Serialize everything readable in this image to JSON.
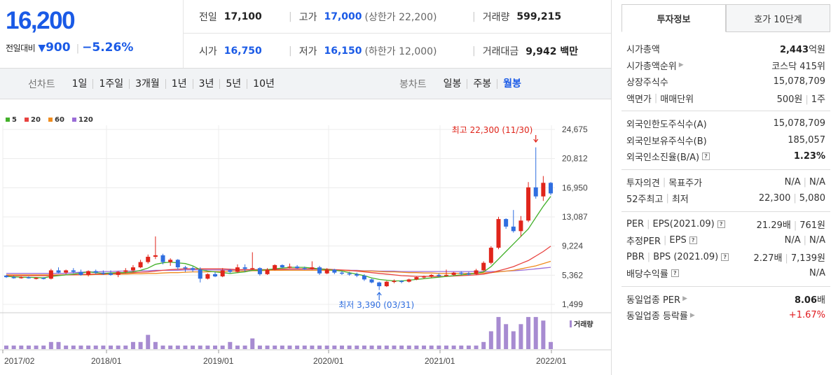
{
  "price": {
    "current": "16,200",
    "change_label": "전일대비",
    "change_value": "900",
    "change_pct": "−5.26%"
  },
  "stats": {
    "prev_close": {
      "label": "전일",
      "value": "17,100"
    },
    "high": {
      "label": "고가",
      "value": "17,000",
      "limit_label": "(상한가 22,200)"
    },
    "volume": {
      "label": "거래량",
      "value": "599,215"
    },
    "open": {
      "label": "시가",
      "value": "16,750"
    },
    "low": {
      "label": "저가",
      "value": "16,150",
      "limit_label": "(하한가 12,000)"
    },
    "amount": {
      "label": "거래대금",
      "value": "9,942 백만"
    }
  },
  "tabs": {
    "line_title": "선차트",
    "line_options": [
      "1일",
      "1주일",
      "3개월",
      "1년",
      "3년",
      "5년",
      "10년"
    ],
    "candle_title": "봉차트",
    "candle_options": [
      "일봉",
      "주봉",
      "월봉"
    ],
    "candle_active": "월봉"
  },
  "chart_data": {
    "type": "candlestick",
    "interval": "monthly",
    "x_tick_labels": [
      "2017/02",
      "2018/01",
      "2019/01",
      "2020/01",
      "2021/01",
      "2022/01"
    ],
    "y_tick_labels": [
      "24,675",
      "20,812",
      "16,950",
      "13,087",
      "9,224",
      "5,362",
      "1,499"
    ],
    "ylim": [
      1499,
      24675
    ],
    "legend": [
      {
        "name": "5",
        "color": "#43b02a"
      },
      {
        "name": "20",
        "color": "#e8423f"
      },
      {
        "name": "60",
        "color": "#f08c1e"
      },
      {
        "name": "120",
        "color": "#9b6dd7"
      }
    ],
    "max_annotation": "최고 22,300 (11/30)",
    "min_annotation": "최저 3,390 (03/31)",
    "volume_label": "거래량",
    "up_color": "#e0251b",
    "down_color": "#2f6ee0",
    "volume_color": "#a78bd1",
    "ohlc": [
      [
        5300,
        5400,
        5000,
        5100,
        1
      ],
      [
        5100,
        5300,
        4900,
        5000,
        1
      ],
      [
        5000,
        5200,
        4900,
        5100,
        1
      ],
      [
        5100,
        5200,
        4900,
        4950,
        1
      ],
      [
        4950,
        5100,
        4800,
        5000,
        1
      ],
      [
        5000,
        5100,
        4800,
        4900,
        1
      ],
      [
        4900,
        6200,
        4800,
        6000,
        2
      ],
      [
        6000,
        6400,
        5600,
        5700,
        2
      ],
      [
        5700,
        6100,
        5500,
        6000,
        1
      ],
      [
        6000,
        6300,
        5600,
        5800,
        1
      ],
      [
        5800,
        6100,
        5300,
        5400,
        1
      ],
      [
        5400,
        6000,
        5200,
        5900,
        1
      ],
      [
        5900,
        6100,
        5500,
        5700,
        1
      ],
      [
        5700,
        6000,
        5400,
        5600,
        1
      ],
      [
        5600,
        6000,
        5300,
        5400,
        1
      ],
      [
        5400,
        5900,
        5100,
        5800,
        1
      ],
      [
        5800,
        6300,
        5600,
        6000,
        1
      ],
      [
        6000,
        6700,
        5800,
        6400,
        2
      ],
      [
        6400,
        7400,
        6300,
        7100,
        2
      ],
      [
        7100,
        8100,
        6900,
        7800,
        4
      ],
      [
        7800,
        10500,
        7500,
        8000,
        2
      ],
      [
        8000,
        8200,
        6800,
        7100,
        1
      ],
      [
        7100,
        7600,
        6600,
        7400,
        1
      ],
      [
        7400,
        7500,
        6100,
        6400,
        1
      ],
      [
        6400,
        6600,
        5800,
        6300,
        1
      ],
      [
        6300,
        6500,
        5800,
        6100,
        1
      ],
      [
        6100,
        6400,
        4400,
        4900,
        1
      ],
      [
        4900,
        5600,
        4800,
        5500,
        1
      ],
      [
        5500,
        5800,
        5100,
        5200,
        1
      ],
      [
        5200,
        6300,
        5100,
        6000,
        1
      ],
      [
        6000,
        6200,
        5600,
        5800,
        2
      ],
      [
        5800,
        6800,
        5700,
        6400,
        1
      ],
      [
        6400,
        6800,
        5800,
        6200,
        1
      ],
      [
        6200,
        8400,
        6100,
        6300,
        3
      ],
      [
        6300,
        6400,
        5300,
        5500,
        1
      ],
      [
        5500,
        6300,
        5400,
        6100,
        1
      ],
      [
        6100,
        6800,
        6000,
        6700,
        1
      ],
      [
        6700,
        6800,
        6300,
        6400,
        1
      ],
      [
        6400,
        6900,
        6300,
        6500,
        1
      ],
      [
        6500,
        6700,
        6200,
        6300,
        1
      ],
      [
        6300,
        6500,
        6100,
        6200,
        1
      ],
      [
        6200,
        7200,
        6100,
        6400,
        1
      ],
      [
        6400,
        6600,
        5400,
        5600,
        1
      ],
      [
        5600,
        6300,
        5500,
        6100,
        1
      ],
      [
        6100,
        6200,
        5500,
        5700,
        1
      ],
      [
        5700,
        5900,
        5400,
        5600,
        1
      ],
      [
        5600,
        5800,
        5300,
        5500,
        1
      ],
      [
        5500,
        5700,
        5100,
        5300,
        1
      ],
      [
        5300,
        5500,
        4600,
        4800,
        1
      ],
      [
        4800,
        4900,
        4300,
        4400,
        1
      ],
      [
        4400,
        4500,
        3390,
        3900,
        1
      ],
      [
        3900,
        4600,
        3800,
        4500,
        1
      ],
      [
        4500,
        4800,
        4300,
        4600,
        1
      ],
      [
        4600,
        4700,
        4300,
        4500,
        1
      ],
      [
        4500,
        4900,
        4400,
        4800,
        1
      ],
      [
        4800,
        5200,
        4700,
        5100,
        1
      ],
      [
        5100,
        5300,
        4900,
        5200,
        1
      ],
      [
        5200,
        5500,
        5000,
        5400,
        1
      ],
      [
        5400,
        5600,
        5100,
        5300,
        1
      ],
      [
        5300,
        6100,
        5200,
        5400,
        1
      ],
      [
        5400,
        5800,
        5300,
        5700,
        1
      ],
      [
        5700,
        5900,
        5400,
        5600,
        1
      ],
      [
        5600,
        5800,
        5300,
        5500,
        1
      ],
      [
        5500,
        6200,
        5400,
        6000,
        1
      ],
      [
        6000,
        7200,
        5900,
        7000,
        2
      ],
      [
        7000,
        9200,
        6800,
        9000,
        5
      ],
      [
        9000,
        13100,
        8800,
        12800,
        9
      ],
      [
        12800,
        12900,
        11500,
        11800,
        7
      ],
      [
        11800,
        14000,
        11000,
        11200,
        5
      ],
      [
        11200,
        13200,
        10500,
        12600,
        7
      ],
      [
        12600,
        17700,
        12400,
        17000,
        9
      ],
      [
        17000,
        22300,
        15500,
        15800,
        9
      ],
      [
        15800,
        18500,
        15200,
        17600,
        8
      ],
      [
        17600,
        17700,
        16000,
        16200,
        2
      ]
    ],
    "ma_series": {
      "ma5": [
        5200,
        5150,
        5100,
        5080,
        5050,
        5000,
        5200,
        5300,
        5400,
        5500,
        5650,
        5800,
        5700,
        5600,
        5650,
        5700,
        5700,
        5800,
        6000,
        6300,
        6800,
        7000,
        7100,
        7000,
        6900,
        6600,
        6100,
        5900,
        5800,
        5700,
        5600,
        5700,
        5800,
        6000,
        6000,
        6100,
        6200,
        6300,
        6400,
        6400,
        6400,
        6300,
        6200,
        6100,
        6000,
        5900,
        5700,
        5500,
        5300,
        5000,
        4800,
        4700,
        4600,
        4600,
        4700,
        4800,
        4900,
        5000,
        5100,
        5200,
        5300,
        5400,
        5500,
        5600,
        5800,
        6500,
        7500,
        8500,
        9500,
        10500,
        11500,
        13000,
        14500,
        15800
      ],
      "ma20": [
        5300,
        5300,
        5300,
        5300,
        5300,
        5300,
        5300,
        5350,
        5400,
        5400,
        5450,
        5500,
        5500,
        5500,
        5550,
        5600,
        5650,
        5700,
        5750,
        5800,
        5900,
        6000,
        6100,
        6150,
        6200,
        6200,
        6200,
        6200,
        6200,
        6200,
        6150,
        6100,
        6100,
        6100,
        6100,
        6100,
        6100,
        6150,
        6200,
        6200,
        6200,
        6200,
        6200,
        6150,
        6100,
        6050,
        6000,
        5900,
        5800,
        5700,
        5600,
        5500,
        5400,
        5300,
        5250,
        5200,
        5200,
        5200,
        5200,
        5200,
        5250,
        5300,
        5350,
        5400,
        5500,
        5700,
        5950,
        6200,
        6500,
        6900,
        7300,
        7900,
        8500,
        9200
      ],
      "ma60": [
        5400,
        5400,
        5400,
        5400,
        5400,
        5400,
        5400,
        5400,
        5400,
        5400,
        5400,
        5400,
        5450,
        5450,
        5500,
        5500,
        5500,
        5550,
        5550,
        5600,
        5600,
        5650,
        5700,
        5700,
        5750,
        5800,
        5800,
        5800,
        5850,
        5850,
        5900,
        5900,
        5900,
        5950,
        5950,
        6000,
        6000,
        6000,
        6000,
        6000,
        6000,
        6000,
        6000,
        6000,
        6000,
        6000,
        5950,
        5950,
        5900,
        5900,
        5850,
        5800,
        5800,
        5750,
        5700,
        5700,
        5650,
        5650,
        5600,
        5600,
        5600,
        5600,
        5600,
        5600,
        5650,
        5700,
        5800,
        5900,
        6000,
        6200,
        6400,
        6600,
        6900,
        7200
      ],
      "ma120": [
        5600,
        5600,
        5600,
        5600,
        5600,
        5600,
        5600,
        5600,
        5600,
        5700,
        5750,
        5800,
        5800,
        5850,
        5850,
        5900,
        5900,
        5900,
        5950,
        5950,
        6000,
        6000,
        6000,
        6000,
        6050,
        6050,
        6050,
        6050,
        6050,
        6050,
        6050,
        6050,
        6050,
        6050,
        6050,
        6050,
        6050,
        6050,
        6050,
        6050,
        6050,
        6050,
        6050,
        6050,
        6050,
        6000,
        6000,
        6000,
        5950,
        5950,
        5900,
        5900,
        5900,
        5850,
        5850,
        5850,
        5850,
        5850,
        5850,
        5850,
        5850,
        5850,
        5850,
        5850,
        5850,
        5850,
        5850,
        5900,
        5950,
        6000,
        6100,
        6200,
        6300,
        6400
      ]
    }
  },
  "panel": {
    "tab_info": "투자정보",
    "tab_quote": "호가 10단계",
    "sections": [
      [
        {
          "k": "시가총액",
          "v": "2,443",
          "unit": "억원",
          "bold": true
        },
        {
          "k": "시가총액순위",
          "caret": true,
          "v": "코스닥 415위"
        },
        {
          "k": "상장주식수",
          "v": "15,078,709"
        },
        {
          "k": "액면가",
          "k2": "매매단위",
          "v": "500원",
          "v2": "1주"
        }
      ],
      [
        {
          "k": "외국인한도주식수(A)",
          "v": "15,078,709"
        },
        {
          "k": "외국인보유주식수(B)",
          "v": "185,057"
        },
        {
          "k": "외국인소진율(B/A)",
          "q": true,
          "v": "1.23%",
          "bold": true
        }
      ],
      [
        {
          "k": "투자의견",
          "k2": "목표주가",
          "v": "N/A",
          "v2": "N/A"
        },
        {
          "k": "52주최고",
          "k2": "최저",
          "v": "22,300",
          "v2": "5,080"
        }
      ],
      [
        {
          "k": "PER",
          "k2": "EPS(2021.09)",
          "q": true,
          "v": "21.29배",
          "v2": "761원"
        },
        {
          "k": "추정PER",
          "k2": "EPS",
          "q": true,
          "v": "N/A",
          "v2": "N/A"
        },
        {
          "k": "PBR",
          "k2": "BPS (2021.09)",
          "q": true,
          "v": "2.27배",
          "v2": "7,139원"
        },
        {
          "k": "배당수익률",
          "q": true,
          "v": "N/A"
        }
      ],
      [
        {
          "k": "동일업종 PER",
          "caret": true,
          "v": "8.06",
          "unit": "배",
          "bold": true
        },
        {
          "k": "동일업종 등락률",
          "caret": true,
          "v": "+1.67%",
          "red": true
        }
      ]
    ]
  }
}
